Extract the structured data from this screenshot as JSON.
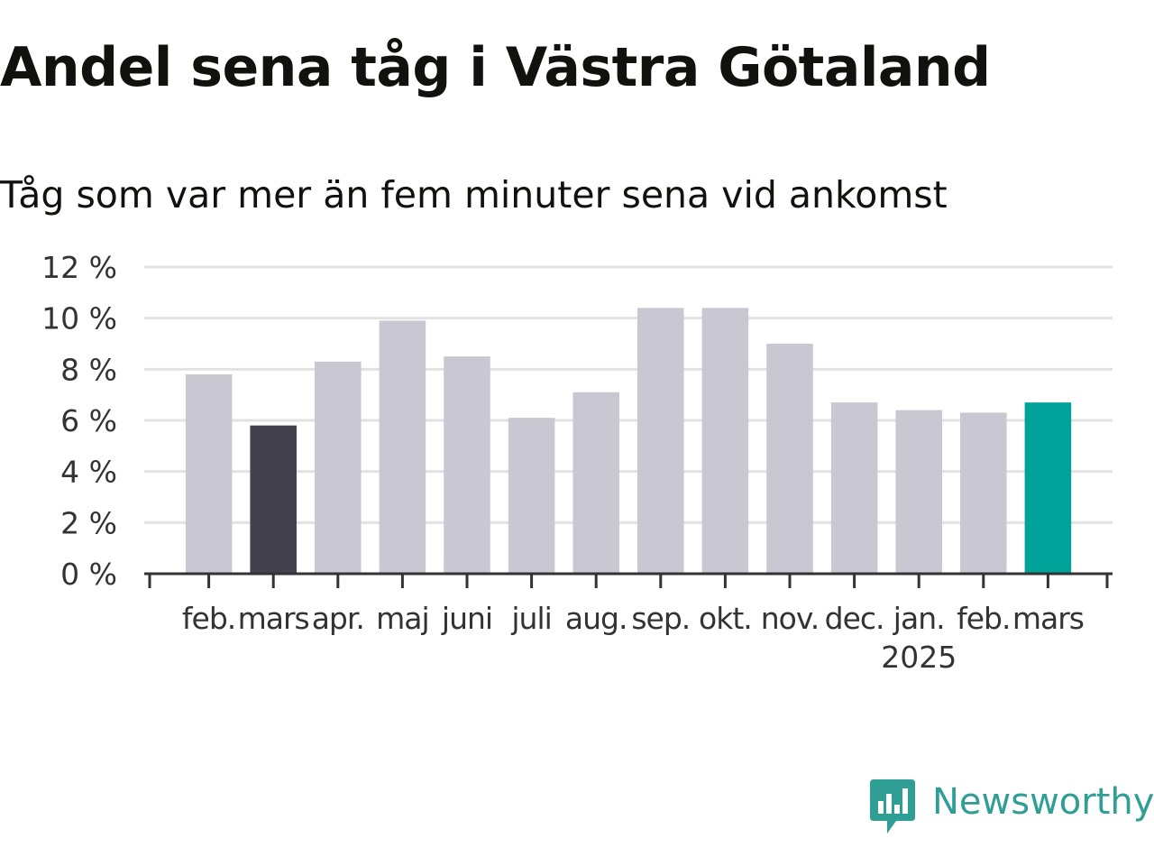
{
  "header": {
    "title": "Andel sena tåg i Västra Götaland",
    "subtitle": "Tåg som var mer än fem minuter sena vid ankomst"
  },
  "brand": {
    "name": "Newsworthy",
    "icon": "newsworthy-logo-icon",
    "color": "#2f9e94"
  },
  "colors": {
    "default_bar": "#c8c7d2",
    "previous_year_bar": "#43414d",
    "current_bar": "#00a39a",
    "grid": "#e2e2e2",
    "axis": "#333333",
    "text": "#333333"
  },
  "chart_data": {
    "type": "bar",
    "categories": [
      "feb.",
      "mars",
      "apr.",
      "maj",
      "juni",
      "juli",
      "aug.",
      "sep.",
      "okt.",
      "nov.",
      "dec.",
      "jan.",
      "feb.",
      "mars"
    ],
    "year_label": "2025",
    "year_label_under": 11,
    "values": [
      7.8,
      5.8,
      8.3,
      9.9,
      8.5,
      6.1,
      7.1,
      10.4,
      10.4,
      9.0,
      6.7,
      6.4,
      6.3,
      6.7
    ],
    "highlight": {
      "previous_year": 1,
      "current": 13
    },
    "ylim": [
      0,
      12
    ],
    "yticks": [
      0,
      2,
      4,
      6,
      8,
      10,
      12
    ],
    "ytick_labels": [
      "0 %",
      "2 %",
      "4 %",
      "6 %",
      "8 %",
      "10 %",
      "12 %"
    ],
    "grid": true
  }
}
